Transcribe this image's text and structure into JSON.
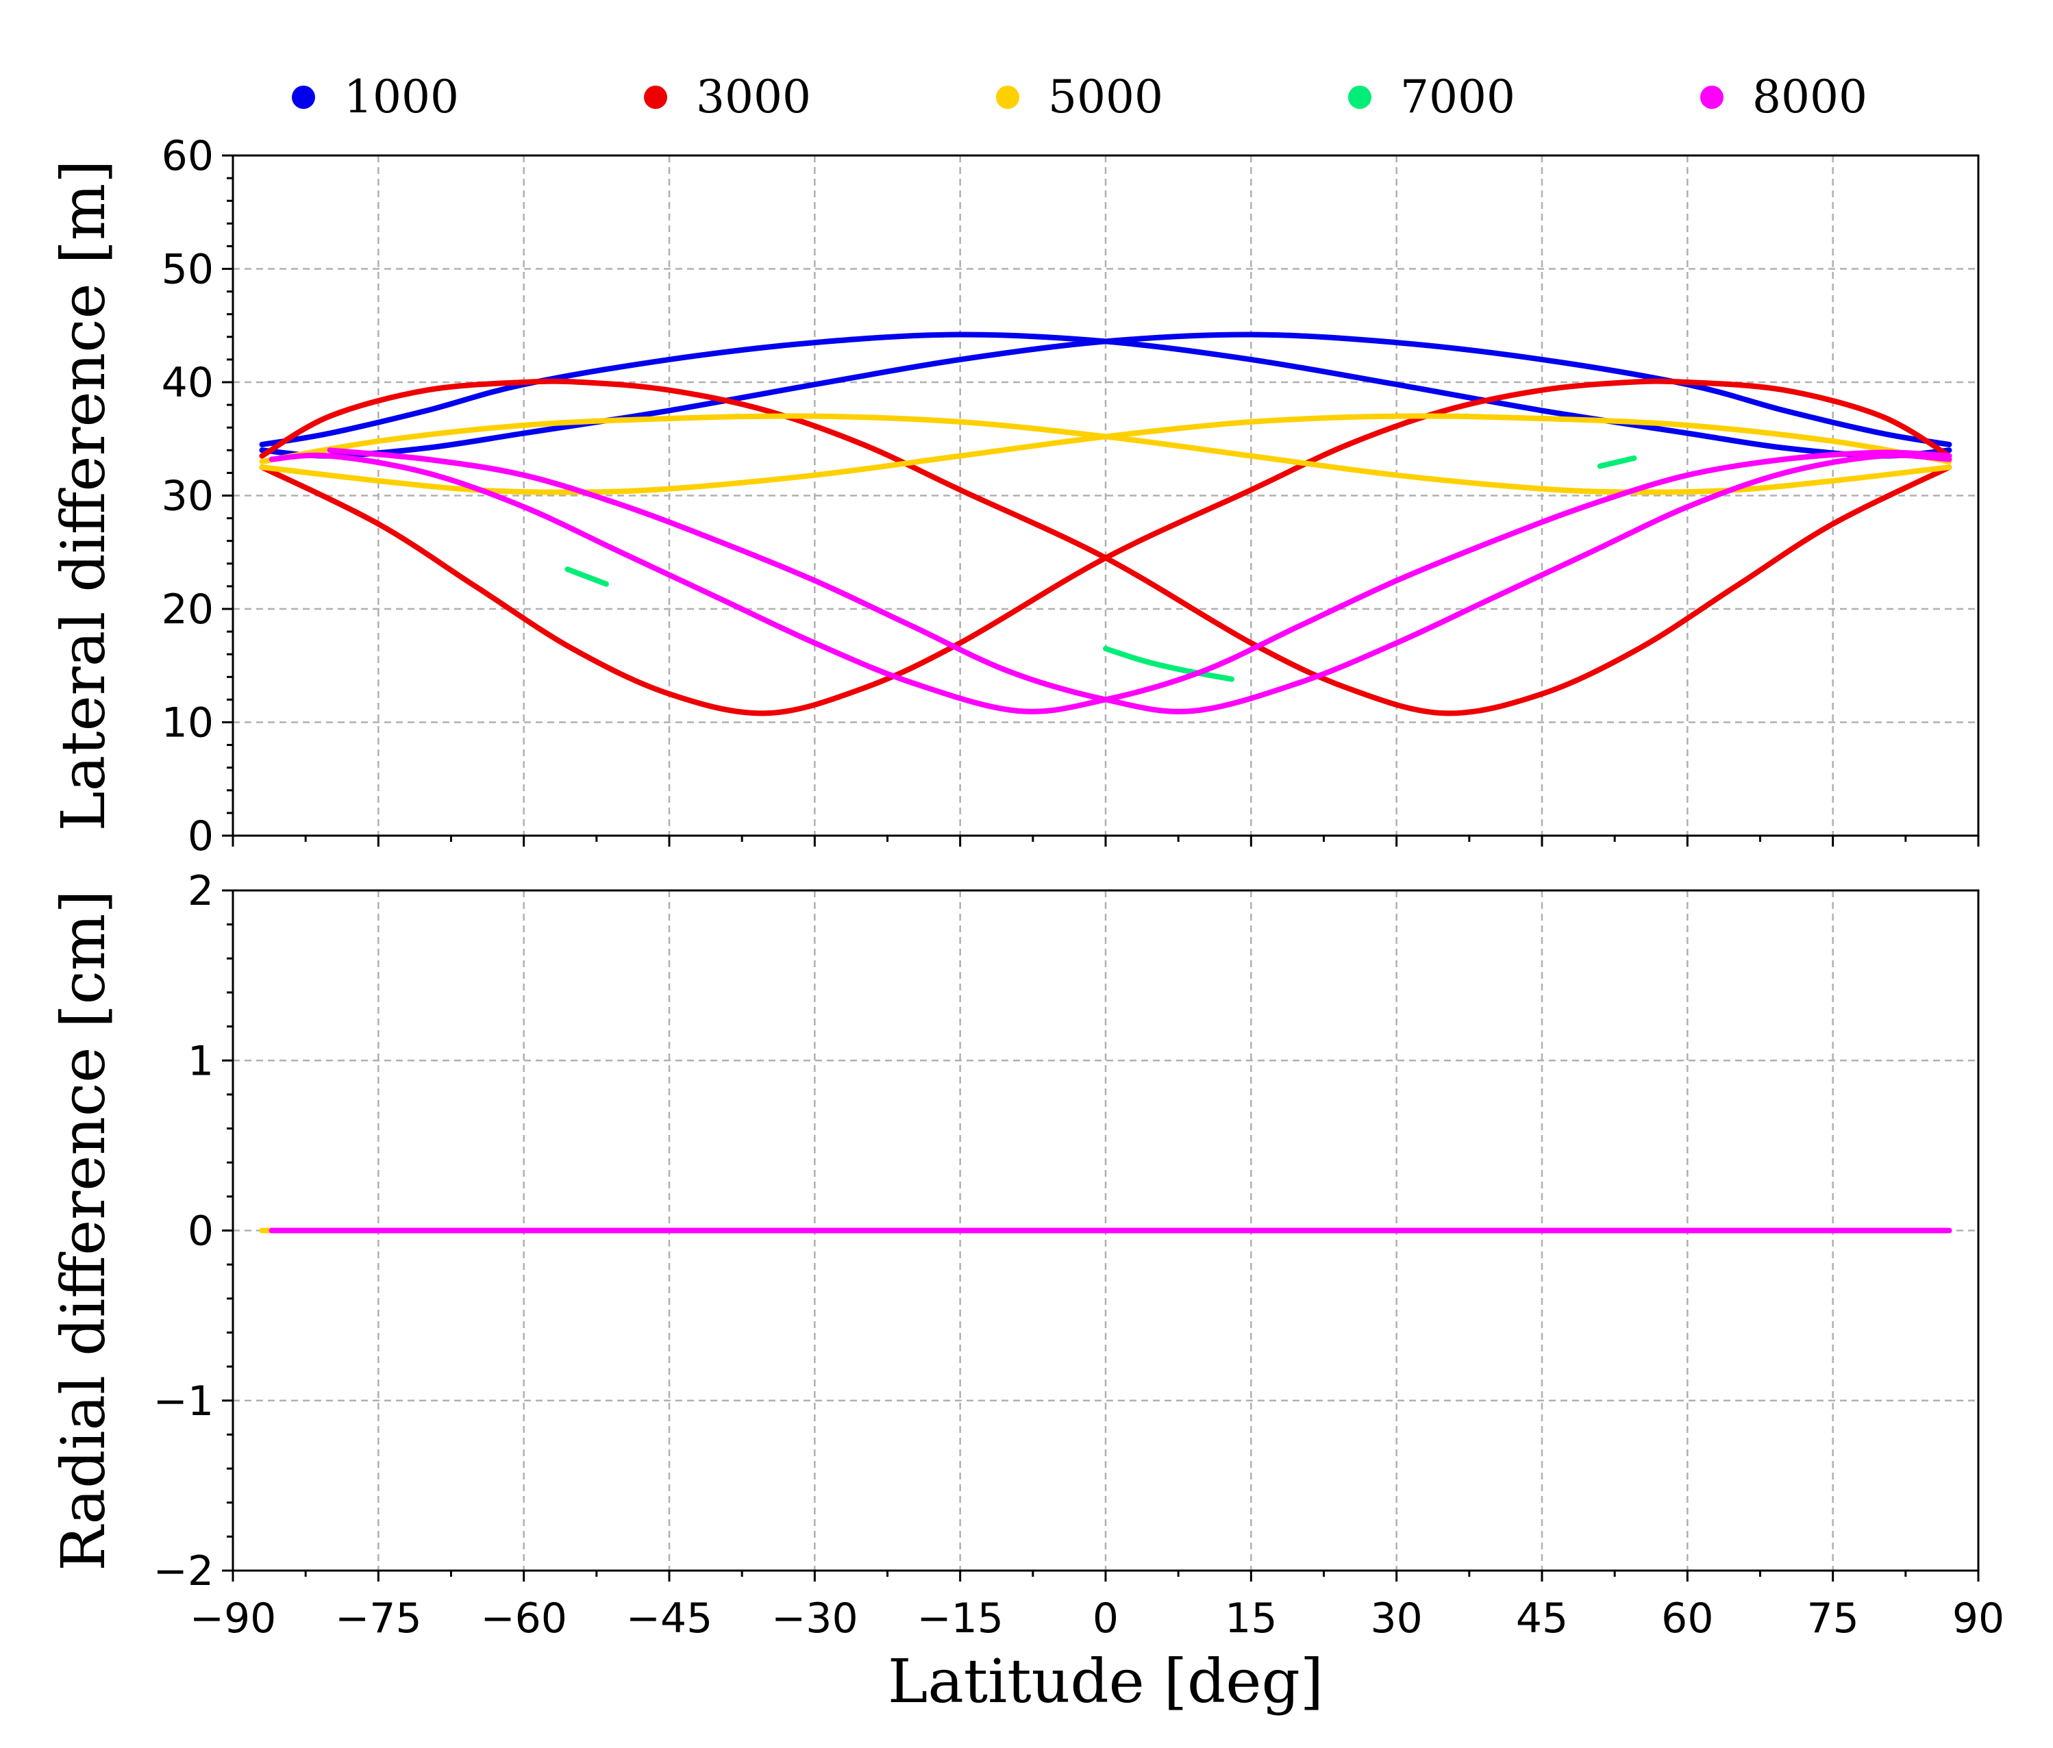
{
  "chart_data": {
    "type": "line",
    "legend": {
      "placement": "top",
      "entries": [
        {
          "label": "1000",
          "color": "#0000ee"
        },
        {
          "label": "3000",
          "color": "#ee0000"
        },
        {
          "label": "5000",
          "color": "#ffd000"
        },
        {
          "label": "7000",
          "color": "#00ee77"
        },
        {
          "label": "8000",
          "color": "#ff00ff"
        }
      ]
    },
    "xlabel": "Latitude [deg]",
    "xlim": [
      -90,
      90
    ],
    "xticks": [
      -90,
      -75,
      -60,
      -45,
      -30,
      -15,
      0,
      15,
      30,
      45,
      60,
      75,
      90
    ],
    "xtick_labels": [
      "−90",
      "−75",
      "−60",
      "−45",
      "−30",
      "−15",
      "0",
      "15",
      "30",
      "45",
      "60",
      "75",
      "90"
    ],
    "grid": true,
    "panels": [
      {
        "name": "top",
        "ylabel": "Lateral difference [m]",
        "ylim": [
          0,
          60
        ],
        "yticks": [
          0,
          10,
          20,
          30,
          40,
          50,
          60
        ],
        "ytick_labels": [
          "0",
          "10",
          "20",
          "30",
          "40",
          "50",
          "60"
        ],
        "series": [
          {
            "name": "1000",
            "color": "#0000ee",
            "segments": [
              {
                "x": [
                  -87,
                  -80,
                  -70,
                  -60,
                  -45,
                  -30,
                  -15,
                  0,
                  15,
                  30,
                  45,
                  60,
                  70,
                  80,
                  87
                ],
                "y": [
                  34.5,
                  35.5,
                  37.5,
                  39.8,
                  42.0,
                  43.5,
                  44.2,
                  43.6,
                  42.0,
                  39.8,
                  37.5,
                  35.5,
                  34.2,
                  33.5,
                  34.0
                ]
              },
              {
                "x": [
                  -87,
                  -80,
                  -70,
                  -60,
                  -45,
                  -30,
                  -15,
                  0,
                  15,
                  30,
                  45,
                  60,
                  70,
                  80,
                  87
                ],
                "y": [
                  34.0,
                  33.5,
                  34.2,
                  35.5,
                  37.5,
                  39.8,
                  42.0,
                  43.6,
                  44.2,
                  43.5,
                  42.0,
                  39.8,
                  37.5,
                  35.5,
                  34.5
                ]
              }
            ]
          },
          {
            "name": "3000",
            "color": "#ee0000",
            "segments": [
              {
                "x": [
                  -87,
                  -80,
                  -70,
                  -60,
                  -54,
                  -45,
                  -35,
                  -25,
                  -15,
                  0,
                  15,
                  25,
                  35,
                  45,
                  55,
                  65,
                  75,
                  87
                ],
                "y": [
                  33.5,
                  37.0,
                  39.3,
                  40.0,
                  40.0,
                  39.3,
                  37.5,
                  34.5,
                  30.5,
                  24.5,
                  17.0,
                  13.0,
                  10.8,
                  12.5,
                  16.5,
                  22.0,
                  27.5,
                  32.5
                ]
              },
              {
                "x": [
                  -87,
                  -75,
                  -65,
                  -55,
                  -45,
                  -35,
                  -25,
                  -15,
                  0,
                  15,
                  25,
                  35,
                  45,
                  54,
                  60,
                  70,
                  80,
                  87
                ],
                "y": [
                  32.5,
                  27.5,
                  22.0,
                  16.5,
                  12.5,
                  10.8,
                  13.0,
                  17.0,
                  24.5,
                  30.5,
                  34.5,
                  37.5,
                  39.3,
                  40.0,
                  40.0,
                  39.3,
                  37.0,
                  33.5
                ]
              }
            ]
          },
          {
            "name": "5000",
            "color": "#ffd000",
            "segments": [
              {
                "x": [
                  -87,
                  -75,
                  -60,
                  -45,
                  -30,
                  -15,
                  0,
                  15,
                  30,
                  45,
                  55,
                  65,
                  75,
                  87
                ],
                "y": [
                  33.0,
                  34.8,
                  36.2,
                  36.8,
                  37.0,
                  36.5,
                  35.2,
                  33.5,
                  31.8,
                  30.6,
                  30.3,
                  30.5,
                  31.3,
                  32.5
                ]
              },
              {
                "x": [
                  -87,
                  -75,
                  -65,
                  -55,
                  -45,
                  -30,
                  -15,
                  0,
                  15,
                  30,
                  45,
                  60,
                  75,
                  87
                ],
                "y": [
                  32.5,
                  31.3,
                  30.5,
                  30.3,
                  30.6,
                  31.8,
                  33.5,
                  35.2,
                  36.5,
                  37.0,
                  36.8,
                  36.2,
                  34.8,
                  33.0
                ]
              }
            ]
          },
          {
            "name": "7000",
            "color": "#00ee77",
            "segments": [
              {
                "x": [
                  -55.5,
                  -51.5
                ],
                "y": [
                  23.5,
                  22.2
                ]
              },
              {
                "x": [
                  0,
                  4,
                  8,
                  13
                ],
                "y": [
                  16.5,
                  15.4,
                  14.6,
                  13.8
                ]
              },
              {
                "x": [
                  51,
                  54.5
                ],
                "y": [
                  32.6,
                  33.3
                ]
              }
            ]
          },
          {
            "name": "8000",
            "color": "#ff00ff",
            "segments": [
              {
                "x": [
                  -86,
                  -80,
                  -70,
                  -60,
                  -50,
                  -40,
                  -30,
                  -20,
                  -9,
                  0,
                  10,
                  20,
                  30,
                  40,
                  50,
                  60,
                  70,
                  80,
                  87
                ],
                "y": [
                  33.2,
                  33.5,
                  32.0,
                  29.0,
                  25.0,
                  21.0,
                  17.0,
                  13.5,
                  11.0,
                  12.0,
                  14.5,
                  18.5,
                  22.5,
                  26.0,
                  29.2,
                  31.8,
                  33.2,
                  33.8,
                  33.5
                ]
              },
              {
                "x": [
                  -80,
                  -70,
                  -60,
                  -50,
                  -40,
                  -30,
                  -20,
                  -10,
                  0,
                  9,
                  20,
                  30,
                  40,
                  50,
                  60,
                  70,
                  80,
                  87
                ],
                "y": [
                  34.0,
                  33.2,
                  31.8,
                  29.2,
                  26.0,
                  22.5,
                  18.5,
                  14.5,
                  12.0,
                  11.0,
                  13.5,
                  17.0,
                  21.0,
                  25.0,
                  29.0,
                  32.0,
                  33.5,
                  33.2
                ]
              }
            ]
          }
        ]
      },
      {
        "name": "bottom",
        "ylabel": "Radial difference [cm]",
        "ylim": [
          -2,
          2
        ],
        "yticks": [
          -2,
          -1,
          0,
          1,
          2
        ],
        "ytick_labels": [
          "−2",
          "−1",
          "0",
          "1",
          "2"
        ],
        "series": [
          {
            "name": "5000",
            "color": "#ffd000",
            "segments": [
              {
                "x": [
                  -87,
                  87
                ],
                "y": [
                  0,
                  0
                ]
              }
            ]
          },
          {
            "name": "8000",
            "color": "#ff00ff",
            "segments": [
              {
                "x": [
                  -86,
                  87
                ],
                "y": [
                  0,
                  0
                ]
              }
            ]
          }
        ]
      }
    ]
  }
}
